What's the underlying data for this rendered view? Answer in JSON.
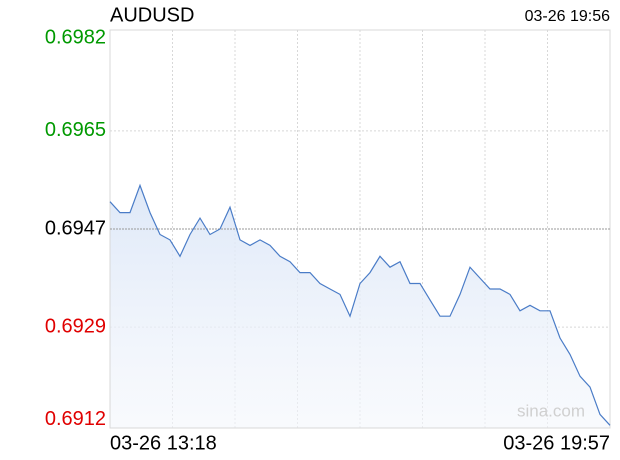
{
  "chart_data": {
    "type": "line",
    "title": "AUDUSD",
    "time": "03-26 19:56",
    "watermark": "sina.com",
    "categories": [
      "03-26 13:18",
      null,
      null,
      null,
      null,
      null,
      null,
      null,
      null,
      null,
      null,
      null,
      null,
      null,
      null,
      null,
      null,
      null,
      null,
      null,
      null,
      null,
      null,
      null,
      null,
      null,
      null,
      null,
      null,
      null,
      null,
      null,
      null,
      null,
      null,
      null,
      null,
      null,
      null,
      null,
      null,
      null,
      null,
      null,
      null,
      null,
      null,
      null,
      null,
      null,
      "03-26 19:57"
    ],
    "series": [
      {
        "name": "AUDUSD",
        "color": "#4a7cc7",
        "values": [
          0.6952,
          0.695,
          0.695,
          0.6955,
          0.695,
          0.6946,
          0.6945,
          0.6942,
          0.6946,
          0.6949,
          0.6946,
          0.6947,
          0.6951,
          0.6945,
          0.6944,
          0.6945,
          0.6944,
          0.6942,
          0.6941,
          0.6939,
          0.6939,
          0.6937,
          0.6936,
          0.6935,
          0.6931,
          0.6937,
          0.6939,
          0.6942,
          0.694,
          0.6941,
          0.6937,
          0.6937,
          0.6934,
          0.6931,
          0.6931,
          0.6935,
          0.694,
          0.6938,
          0.6936,
          0.6936,
          0.6935,
          0.6932,
          0.6933,
          0.6932,
          0.6932,
          0.6927,
          0.6924,
          0.692,
          0.6918,
          0.6913,
          0.6911
        ]
      }
    ],
    "ylim": [
      0.69105,
      0.69835
    ],
    "yticks": [
      0.6982,
      0.6965,
      0.6947,
      0.6929,
      0.6912
    ],
    "reference": 0.6947,
    "up_color": "#009900",
    "down_color": "#e00000",
    "flat_color": "#000000",
    "grid": true
  }
}
